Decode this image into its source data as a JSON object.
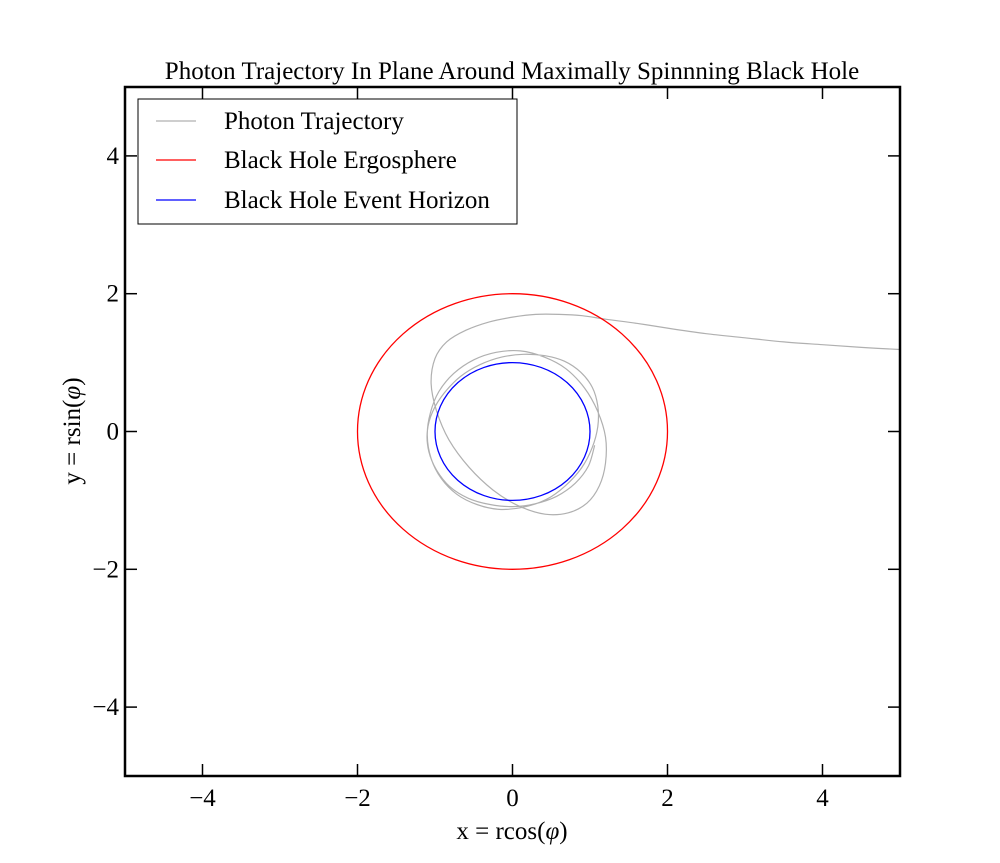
{
  "chart_data": {
    "type": "line",
    "title": "Photon Trajectory In Plane Around Maximally Spinnning Black Hole",
    "xlabel": "x = rcos(",
    "xlabel_symbol": "φ",
    "xlabel_close": ")",
    "ylabel": "y = rsin(",
    "ylabel_symbol": "φ",
    "ylabel_close": ")",
    "xlim": [
      -5,
      5
    ],
    "ylim": [
      -5,
      5
    ],
    "xticks": [
      {
        "value": -4,
        "label": "−4"
      },
      {
        "value": -2,
        "label": "−2"
      },
      {
        "value": 0,
        "label": "0"
      },
      {
        "value": 2,
        "label": "2"
      },
      {
        "value": 4,
        "label": "4"
      }
    ],
    "yticks": [
      {
        "value": -4,
        "label": "−4"
      },
      {
        "value": -2,
        "label": "−2"
      },
      {
        "value": 0,
        "label": "0"
      },
      {
        "value": 2,
        "label": "2"
      },
      {
        "value": 4,
        "label": "4"
      }
    ],
    "grid": false,
    "legend_position": "top-left",
    "series": [
      {
        "name": "Photon Trajectory",
        "color": "#b0b0b0",
        "x": [
          5.0,
          4.5,
          4.0,
          3.5,
          3.0,
          2.5,
          2.0,
          1.6,
          1.2,
          0.9,
          0.6,
          0.3,
          0.0,
          -0.3,
          -0.6,
          -0.85,
          -1.0,
          -1.05,
          -0.98,
          -0.82,
          -0.56,
          -0.25,
          0.08,
          0.42,
          0.72,
          0.96,
          1.12,
          1.2,
          1.2,
          1.1,
          0.93,
          0.69,
          0.41,
          0.1,
          -0.21,
          -0.5,
          -0.76,
          -0.95,
          -1.06,
          -1.1,
          -1.05,
          -0.92,
          -0.72,
          -0.46,
          -0.17,
          0.13,
          0.43,
          0.68,
          0.89,
          1.03,
          1.1,
          1.1,
          1.03,
          0.88,
          0.67,
          0.42,
          0.14,
          -0.14,
          -0.42,
          -0.67,
          -0.88,
          -1.03,
          -1.1,
          -1.08,
          -0.98,
          -0.81,
          -0.57,
          -0.29,
          0.0,
          0.29,
          0.57,
          0.81,
          0.98,
          1.06
        ],
        "y": [
          1.19,
          1.22,
          1.26,
          1.3,
          1.36,
          1.42,
          1.5,
          1.57,
          1.63,
          1.68,
          1.7,
          1.7,
          1.66,
          1.59,
          1.47,
          1.3,
          1.06,
          0.7,
          0.3,
          -0.12,
          -0.52,
          -0.85,
          -1.08,
          -1.2,
          -1.18,
          -1.04,
          -0.79,
          -0.46,
          -0.08,
          0.29,
          0.63,
          0.91,
          1.08,
          1.17,
          1.15,
          1.04,
          0.84,
          0.58,
          0.27,
          -0.06,
          -0.39,
          -0.68,
          -0.91,
          -1.06,
          -1.13,
          -1.1,
          -0.99,
          -0.79,
          -0.53,
          -0.23,
          0.07,
          0.37,
          0.64,
          0.86,
          1.02,
          1.1,
          1.12,
          1.08,
          0.97,
          0.8,
          0.56,
          0.29,
          0.0,
          -0.29,
          -0.56,
          -0.8,
          -0.97,
          -1.06,
          -1.09,
          -1.05,
          -0.94,
          -0.75,
          -0.5,
          -0.2
        ]
      },
      {
        "name": "Black Hole Ergosphere",
        "color": "#ff0000",
        "radius": 2
      },
      {
        "name": "Black Hole Event Horizon",
        "color": "#0000ff",
        "radius": 1
      }
    ]
  }
}
